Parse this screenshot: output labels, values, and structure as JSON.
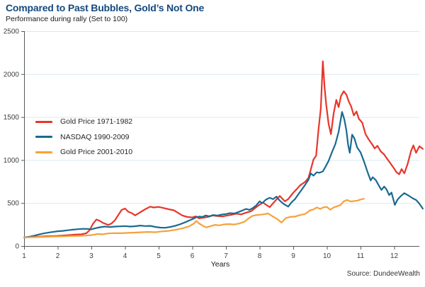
{
  "header": {
    "title": "Compared to Past Bubbles, Gold’s Not One",
    "subtitle": "Performance during rally (Set to 100)"
  },
  "footer": {
    "source": "Source: DundeeWealth"
  },
  "chart_data": {
    "type": "line",
    "title": "Compared to Past Bubbles, Gold’s Not One",
    "subtitle": "Performance during rally (Set to 100)",
    "xlabel": "Years",
    "ylabel": "",
    "xlim": [
      1,
      12.85
    ],
    "ylim": [
      0,
      2500
    ],
    "x_ticks": [
      1,
      2,
      3,
      4,
      5,
      6,
      7,
      8,
      9,
      10,
      11,
      12
    ],
    "y_ticks": [
      0,
      500,
      1000,
      1500,
      2000,
      2500
    ],
    "grid": "horizontal-only",
    "legend_position": "inside-upper-left",
    "source": "Source: DundeeWealth",
    "colors": {
      "gridline": "#D8EAF3",
      "axis": "#58595B",
      "label": "#414042",
      "title": "#14497D"
    },
    "series": [
      {
        "name": "Gold Price 1971-1982",
        "color": "#E8352A",
        "points": [
          [
            1,
            100
          ],
          [
            1.15,
            104
          ],
          [
            1.3,
            106
          ],
          [
            1.5,
            110
          ],
          [
            1.7,
            114
          ],
          [
            1.9,
            117
          ],
          [
            2.1,
            121
          ],
          [
            2.3,
            126
          ],
          [
            2.5,
            132
          ],
          [
            2.7,
            136
          ],
          [
            2.85,
            148
          ],
          [
            2.95,
            185
          ],
          [
            3.05,
            260
          ],
          [
            3.15,
            308
          ],
          [
            3.25,
            292
          ],
          [
            3.35,
            268
          ],
          [
            3.5,
            245
          ],
          [
            3.6,
            262
          ],
          [
            3.7,
            300
          ],
          [
            3.8,
            360
          ],
          [
            3.9,
            420
          ],
          [
            4,
            436
          ],
          [
            4.1,
            398
          ],
          [
            4.2,
            382
          ],
          [
            4.3,
            356
          ],
          [
            4.45,
            392
          ],
          [
            4.6,
            428
          ],
          [
            4.75,
            458
          ],
          [
            4.85,
            448
          ],
          [
            5,
            455
          ],
          [
            5.15,
            442
          ],
          [
            5.3,
            428
          ],
          [
            5.45,
            415
          ],
          [
            5.55,
            392
          ],
          [
            5.7,
            355
          ],
          [
            5.85,
            338
          ],
          [
            6,
            332
          ],
          [
            6.1,
            345
          ],
          [
            6.2,
            322
          ],
          [
            6.35,
            330
          ],
          [
            6.5,
            342
          ],
          [
            6.6,
            355
          ],
          [
            6.75,
            348
          ],
          [
            6.9,
            344
          ],
          [
            7,
            352
          ],
          [
            7.15,
            362
          ],
          [
            7.3,
            376
          ],
          [
            7.45,
            368
          ],
          [
            7.6,
            388
          ],
          [
            7.75,
            405
          ],
          [
            7.9,
            452
          ],
          [
            8,
            480
          ],
          [
            8.1,
            505
          ],
          [
            8.2,
            478
          ],
          [
            8.3,
            452
          ],
          [
            8.45,
            520
          ],
          [
            8.6,
            582
          ],
          [
            8.75,
            520
          ],
          [
            8.85,
            545
          ],
          [
            9,
            620
          ],
          [
            9.1,
            660
          ],
          [
            9.2,
            705
          ],
          [
            9.35,
            745
          ],
          [
            9.45,
            790
          ],
          [
            9.5,
            860
          ],
          [
            9.6,
            1005
          ],
          [
            9.68,
            1050
          ],
          [
            9.75,
            1350
          ],
          [
            9.82,
            1600
          ],
          [
            9.88,
            2150
          ],
          [
            9.93,
            1850
          ],
          [
            9.98,
            1640
          ],
          [
            10.05,
            1420
          ],
          [
            10.12,
            1300
          ],
          [
            10.2,
            1540
          ],
          [
            10.28,
            1700
          ],
          [
            10.35,
            1615
          ],
          [
            10.42,
            1745
          ],
          [
            10.5,
            1800
          ],
          [
            10.58,
            1760
          ],
          [
            10.65,
            1680
          ],
          [
            10.72,
            1625
          ],
          [
            10.8,
            1520
          ],
          [
            10.88,
            1565
          ],
          [
            10.95,
            1480
          ],
          [
            11.05,
            1435
          ],
          [
            11.15,
            1300
          ],
          [
            11.25,
            1235
          ],
          [
            11.35,
            1180
          ],
          [
            11.42,
            1135
          ],
          [
            11.5,
            1165
          ],
          [
            11.6,
            1100
          ],
          [
            11.7,
            1065
          ],
          [
            11.8,
            1010
          ],
          [
            11.9,
            955
          ],
          [
            12,
            900
          ],
          [
            12.07,
            858
          ],
          [
            12.15,
            835
          ],
          [
            12.22,
            895
          ],
          [
            12.3,
            845
          ],
          [
            12.4,
            955
          ],
          [
            12.5,
            1105
          ],
          [
            12.57,
            1170
          ],
          [
            12.65,
            1085
          ],
          [
            12.75,
            1160
          ],
          [
            12.85,
            1130
          ]
        ]
      },
      {
        "name": "NASDAQ 1990-2009",
        "color": "#1A6A91",
        "points": [
          [
            1,
            100
          ],
          [
            1.15,
            108
          ],
          [
            1.3,
            120
          ],
          [
            1.45,
            135
          ],
          [
            1.6,
            147
          ],
          [
            1.75,
            158
          ],
          [
            1.9,
            166
          ],
          [
            2,
            172
          ],
          [
            2.15,
            176
          ],
          [
            2.3,
            183
          ],
          [
            2.45,
            190
          ],
          [
            2.6,
            196
          ],
          [
            2.75,
            200
          ],
          [
            2.9,
            198
          ],
          [
            3,
            194
          ],
          [
            3.1,
            205
          ],
          [
            3.25,
            218
          ],
          [
            3.4,
            226
          ],
          [
            3.55,
            220
          ],
          [
            3.7,
            226
          ],
          [
            3.85,
            229
          ],
          [
            4,
            232
          ],
          [
            4.15,
            226
          ],
          [
            4.3,
            230
          ],
          [
            4.45,
            238
          ],
          [
            4.6,
            232
          ],
          [
            4.75,
            234
          ],
          [
            4.9,
            222
          ],
          [
            5.05,
            214
          ],
          [
            5.2,
            212
          ],
          [
            5.35,
            222
          ],
          [
            5.5,
            236
          ],
          [
            5.65,
            255
          ],
          [
            5.8,
            278
          ],
          [
            5.9,
            296
          ],
          [
            6,
            312
          ],
          [
            6.1,
            332
          ],
          [
            6.2,
            342
          ],
          [
            6.3,
            338
          ],
          [
            6.4,
            355
          ],
          [
            6.5,
            345
          ],
          [
            6.62,
            360
          ],
          [
            6.75,
            354
          ],
          [
            6.88,
            366
          ],
          [
            7,
            372
          ],
          [
            7.12,
            382
          ],
          [
            7.25,
            378
          ],
          [
            7.38,
            396
          ],
          [
            7.5,
            415
          ],
          [
            7.6,
            432
          ],
          [
            7.7,
            420
          ],
          [
            7.8,
            442
          ],
          [
            7.9,
            472
          ],
          [
            8,
            520
          ],
          [
            8.08,
            498
          ],
          [
            8.18,
            538
          ],
          [
            8.3,
            562
          ],
          [
            8.4,
            545
          ],
          [
            8.5,
            575
          ],
          [
            8.6,
            528
          ],
          [
            8.72,
            488
          ],
          [
            8.85,
            458
          ],
          [
            8.95,
            508
          ],
          [
            9.05,
            545
          ],
          [
            9.15,
            600
          ],
          [
            9.25,
            655
          ],
          [
            9.35,
            710
          ],
          [
            9.45,
            770
          ],
          [
            9.52,
            845
          ],
          [
            9.6,
            818
          ],
          [
            9.7,
            858
          ],
          [
            9.78,
            852
          ],
          [
            9.88,
            868
          ],
          [
            9.95,
            915
          ],
          [
            10.05,
            990
          ],
          [
            10.15,
            1090
          ],
          [
            10.25,
            1185
          ],
          [
            10.35,
            1330
          ],
          [
            10.45,
            1560
          ],
          [
            10.52,
            1470
          ],
          [
            10.58,
            1340
          ],
          [
            10.63,
            1180
          ],
          [
            10.68,
            1085
          ],
          [
            10.75,
            1295
          ],
          [
            10.82,
            1250
          ],
          [
            10.9,
            1145
          ],
          [
            11,
            1090
          ],
          [
            11.1,
            985
          ],
          [
            11.2,
            870
          ],
          [
            11.3,
            762
          ],
          [
            11.36,
            800
          ],
          [
            11.45,
            768
          ],
          [
            11.55,
            700
          ],
          [
            11.62,
            652
          ],
          [
            11.7,
            692
          ],
          [
            11.77,
            660
          ],
          [
            11.85,
            592
          ],
          [
            11.92,
            622
          ],
          [
            12.02,
            478
          ],
          [
            12.1,
            540
          ],
          [
            12.2,
            582
          ],
          [
            12.3,
            615
          ],
          [
            12.42,
            588
          ],
          [
            12.55,
            555
          ],
          [
            12.65,
            535
          ],
          [
            12.75,
            492
          ],
          [
            12.85,
            435
          ]
        ]
      },
      {
        "name": "Gold Price 2001-2010",
        "color": "#F6A13A",
        "points": [
          [
            1,
            100
          ],
          [
            1.2,
            102
          ],
          [
            1.4,
            104
          ],
          [
            1.6,
            106
          ],
          [
            1.8,
            109
          ],
          [
            2,
            111
          ],
          [
            2.2,
            113
          ],
          [
            2.4,
            116
          ],
          [
            2.6,
            118
          ],
          [
            2.8,
            121
          ],
          [
            3,
            127
          ],
          [
            3.2,
            140
          ],
          [
            3.35,
            136
          ],
          [
            3.5,
            146
          ],
          [
            3.7,
            150
          ],
          [
            3.9,
            149
          ],
          [
            4.1,
            153
          ],
          [
            4.3,
            156
          ],
          [
            4.5,
            160
          ],
          [
            4.7,
            164
          ],
          [
            4.9,
            160
          ],
          [
            5.1,
            170
          ],
          [
            5.3,
            176
          ],
          [
            5.5,
            188
          ],
          [
            5.7,
            205
          ],
          [
            5.9,
            228
          ],
          [
            6.05,
            262
          ],
          [
            6.12,
            292
          ],
          [
            6.2,
            262
          ],
          [
            6.3,
            238
          ],
          [
            6.42,
            216
          ],
          [
            6.55,
            232
          ],
          [
            6.68,
            246
          ],
          [
            6.8,
            240
          ],
          [
            6.95,
            252
          ],
          [
            7.1,
            255
          ],
          [
            7.25,
            250
          ],
          [
            7.4,
            262
          ],
          [
            7.55,
            282
          ],
          [
            7.7,
            330
          ],
          [
            7.8,
            352
          ],
          [
            7.95,
            362
          ],
          [
            8.1,
            368
          ],
          [
            8.25,
            378
          ],
          [
            8.4,
            342
          ],
          [
            8.52,
            315
          ],
          [
            8.65,
            272
          ],
          [
            8.78,
            325
          ],
          [
            8.9,
            338
          ],
          [
            9.05,
            342
          ],
          [
            9.2,
            360
          ],
          [
            9.35,
            372
          ],
          [
            9.5,
            415
          ],
          [
            9.6,
            425
          ],
          [
            9.7,
            448
          ],
          [
            9.8,
            432
          ],
          [
            9.9,
            450
          ],
          [
            10,
            455
          ],
          [
            10.1,
            422
          ],
          [
            10.2,
            448
          ],
          [
            10.3,
            462
          ],
          [
            10.4,
            475
          ],
          [
            10.5,
            520
          ],
          [
            10.6,
            535
          ],
          [
            10.7,
            518
          ],
          [
            10.8,
            522
          ],
          [
            10.9,
            528
          ],
          [
            11,
            540
          ],
          [
            11.1,
            550
          ]
        ]
      }
    ]
  }
}
